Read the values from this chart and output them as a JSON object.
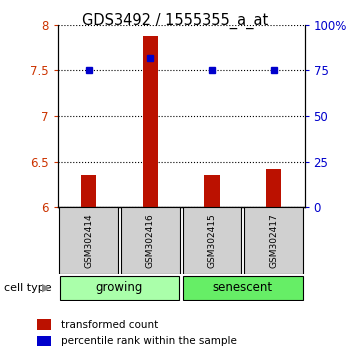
{
  "title": "GDS3492 / 1555355_a_at",
  "samples": [
    "GSM302414",
    "GSM302416",
    "GSM302415",
    "GSM302417"
  ],
  "transformed_counts": [
    6.35,
    7.88,
    6.35,
    6.42
  ],
  "percentile_ranks": [
    75,
    82,
    75,
    75
  ],
  "groups": [
    {
      "label": "growing",
      "indices": [
        0,
        1
      ],
      "color": "#aaffaa"
    },
    {
      "label": "senescent",
      "indices": [
        2,
        3
      ],
      "color": "#66ee66"
    }
  ],
  "ylim_left": [
    6.0,
    8.0
  ],
  "ylim_right": [
    0,
    100
  ],
  "yticks_left": [
    6.0,
    6.5,
    7.0,
    7.5,
    8.0
  ],
  "yticks_right": [
    0,
    25,
    50,
    75,
    100
  ],
  "ytick_labels_left": [
    "6",
    "6.5",
    "7",
    "7.5",
    "8"
  ],
  "ytick_labels_right": [
    "0",
    "25",
    "50",
    "75",
    "100%"
  ],
  "bar_color": "#bb1100",
  "dot_color": "#0000cc",
  "left_tick_color": "#cc3300",
  "right_tick_color": "#0000cc",
  "bar_width": 0.25
}
